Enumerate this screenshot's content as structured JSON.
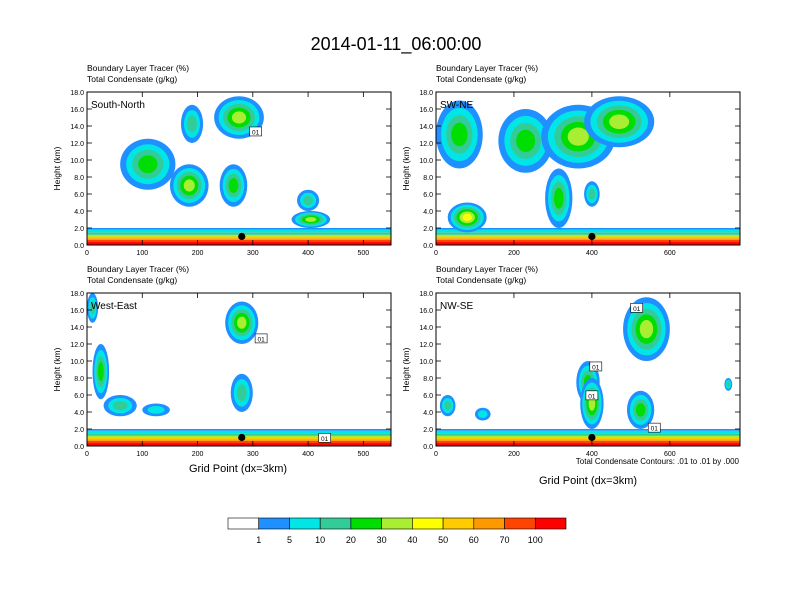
{
  "figure": {
    "title": "2014-01-11_06:00:00",
    "xlabel": "Grid Point (dx=3km)",
    "ylabel": "Height (km)",
    "contour_note": "Total Condensate Contours: .01 to .01 by .000"
  },
  "colors": {
    "bins": [
      "#ffffff",
      "#1e90ff",
      "#00e6e6",
      "#33cc99",
      "#00dd00",
      "#aaee33",
      "#ffff00",
      "#ffcc00",
      "#ff9900",
      "#ff4400",
      "#ff0000"
    ]
  },
  "chart_data": {
    "type": "heatmap",
    "colorbar": {
      "labels": [
        "1",
        "5",
        "10",
        "20",
        "30",
        "40",
        "50",
        "60",
        "70",
        "100"
      ],
      "values": [
        1,
        5,
        10,
        20,
        30,
        40,
        50,
        60,
        70,
        100
      ],
      "units": "%"
    },
    "panels": [
      {
        "name": "South-North",
        "subtitle_1": "Boundary Layer Tracer    (%)",
        "subtitle_2": "Total Condensate   (g/kg)",
        "xlim": [
          0,
          550
        ],
        "xticks": [
          "0",
          "100",
          "200",
          "300",
          "400",
          "500"
        ],
        "ylim": [
          0,
          18
        ],
        "yticks": [
          "0.0",
          "2.0",
          "4.0",
          "6.0",
          "8.0",
          "10.0",
          "12.0",
          "14.0",
          "16.0",
          "18.0"
        ],
        "contour_labels": [
          {
            "text": "01",
            "x": 305,
            "y": 13.3
          }
        ],
        "marker": {
          "x": 280,
          "y": 1.0
        },
        "features": [
          {
            "x0": 60,
            "x1": 160,
            "y0": 6.5,
            "y1": 12.5,
            "level": 4
          },
          {
            "x0": 150,
            "x1": 220,
            "y0": 4.5,
            "y1": 9.5,
            "level": 5
          },
          {
            "x0": 170,
            "x1": 210,
            "y0": 12.0,
            "y1": 16.5,
            "level": 3
          },
          {
            "x0": 230,
            "x1": 320,
            "y0": 12.5,
            "y1": 17.5,
            "level": 5
          },
          {
            "x0": 240,
            "x1": 290,
            "y0": 4.5,
            "y1": 9.5,
            "level": 4
          },
          {
            "x0": 380,
            "x1": 420,
            "y0": 4.0,
            "y1": 6.5,
            "level": 3
          },
          {
            "x0": 370,
            "x1": 440,
            "y0": 2.0,
            "y1": 4.0,
            "level": 5
          }
        ]
      },
      {
        "name": "SW-NE",
        "subtitle_1": "Boundary Layer Tracer    (%)",
        "subtitle_2": "Total Condensate   (g/kg)",
        "xlim": [
          0,
          780
        ],
        "xticks": [
          "0",
          "200",
          "400",
          "600"
        ],
        "ylim": [
          0,
          18
        ],
        "yticks": [
          "0.0",
          "2.0",
          "4.0",
          "6.0",
          "8.0",
          "10.0",
          "12.0",
          "14.0",
          "16.0",
          "18.0"
        ],
        "contour_labels": [],
        "marker": {
          "x": 400,
          "y": 1.0
        },
        "features": [
          {
            "x0": 0,
            "x1": 120,
            "y0": 9.0,
            "y1": 17.0,
            "level": 4
          },
          {
            "x0": 30,
            "x1": 130,
            "y0": 1.5,
            "y1": 5.0,
            "level": 6
          },
          {
            "x0": 160,
            "x1": 300,
            "y0": 8.5,
            "y1": 16.0,
            "level": 4
          },
          {
            "x0": 270,
            "x1": 460,
            "y0": 9.0,
            "y1": 16.5,
            "level": 5
          },
          {
            "x0": 280,
            "x1": 350,
            "y0": 2.0,
            "y1": 9.0,
            "level": 4
          },
          {
            "x0": 380,
            "x1": 560,
            "y0": 11.5,
            "y1": 17.5,
            "level": 5
          },
          {
            "x0": 380,
            "x1": 420,
            "y0": 4.5,
            "y1": 7.5,
            "level": 3
          }
        ]
      },
      {
        "name": "West-East",
        "subtitle_1": "Boundary Layer Tracer    (%)",
        "subtitle_2": "Total Condensate   (g/kg)",
        "xlim": [
          0,
          550
        ],
        "xticks": [
          "0",
          "100",
          "200",
          "300",
          "400",
          "500"
        ],
        "ylim": [
          0,
          18
        ],
        "yticks": [
          "0.0",
          "2.0",
          "4.0",
          "6.0",
          "8.0",
          "10.0",
          "12.0",
          "14.0",
          "16.0",
          "18.0"
        ],
        "contour_labels": [
          {
            "text": "01",
            "x": 315,
            "y": 12.6
          },
          {
            "text": "01",
            "x": 430,
            "y": 0.9
          }
        ],
        "marker": {
          "x": 280,
          "y": 1.0
        },
        "features": [
          {
            "x0": 0,
            "x1": 20,
            "y0": 14.5,
            "y1": 18.0,
            "level": 3
          },
          {
            "x0": 10,
            "x1": 40,
            "y0": 5.5,
            "y1": 12.0,
            "level": 4
          },
          {
            "x0": 30,
            "x1": 90,
            "y0": 3.5,
            "y1": 6.0,
            "level": 3
          },
          {
            "x0": 100,
            "x1": 150,
            "y0": 3.5,
            "y1": 5.0,
            "level": 2
          },
          {
            "x0": 250,
            "x1": 310,
            "y0": 12.0,
            "y1": 17.0,
            "level": 5
          },
          {
            "x0": 260,
            "x1": 300,
            "y0": 4.0,
            "y1": 8.5,
            "level": 3
          }
        ]
      },
      {
        "name": "NW-SE",
        "subtitle_1": "Boundary Layer Tracer    (%)",
        "subtitle_2": "Total Condensate   (g/kg)",
        "xlim": [
          0,
          780
        ],
        "xticks": [
          "0",
          "200",
          "400",
          "600"
        ],
        "ylim": [
          0,
          18
        ],
        "yticks": [
          "0.0",
          "2.0",
          "4.0",
          "6.0",
          "8.0",
          "10.0",
          "12.0",
          "14.0",
          "16.0",
          "18.0"
        ],
        "contour_labels": [
          {
            "text": "01",
            "x": 410,
            "y": 9.3
          },
          {
            "text": "01",
            "x": 515,
            "y": 16.2
          },
          {
            "text": "01",
            "x": 400,
            "y": 5.9
          },
          {
            "text": "01",
            "x": 560,
            "y": 2.1
          }
        ],
        "marker": {
          "x": 400,
          "y": 1.0
        },
        "features": [
          {
            "x0": 10,
            "x1": 50,
            "y0": 3.5,
            "y1": 6.0,
            "level": 3
          },
          {
            "x0": 100,
            "x1": 140,
            "y0": 3.0,
            "y1": 4.5,
            "level": 2
          },
          {
            "x0": 360,
            "x1": 420,
            "y0": 5.0,
            "y1": 10.0,
            "level": 4
          },
          {
            "x0": 370,
            "x1": 430,
            "y0": 2.0,
            "y1": 8.0,
            "level": 5
          },
          {
            "x0": 480,
            "x1": 600,
            "y0": 10.0,
            "y1": 17.5,
            "level": 5
          },
          {
            "x0": 490,
            "x1": 560,
            "y0": 2.0,
            "y1": 6.5,
            "level": 4
          },
          {
            "x0": 740,
            "x1": 760,
            "y0": 6.5,
            "y1": 8.0,
            "level": 3
          }
        ]
      }
    ]
  }
}
